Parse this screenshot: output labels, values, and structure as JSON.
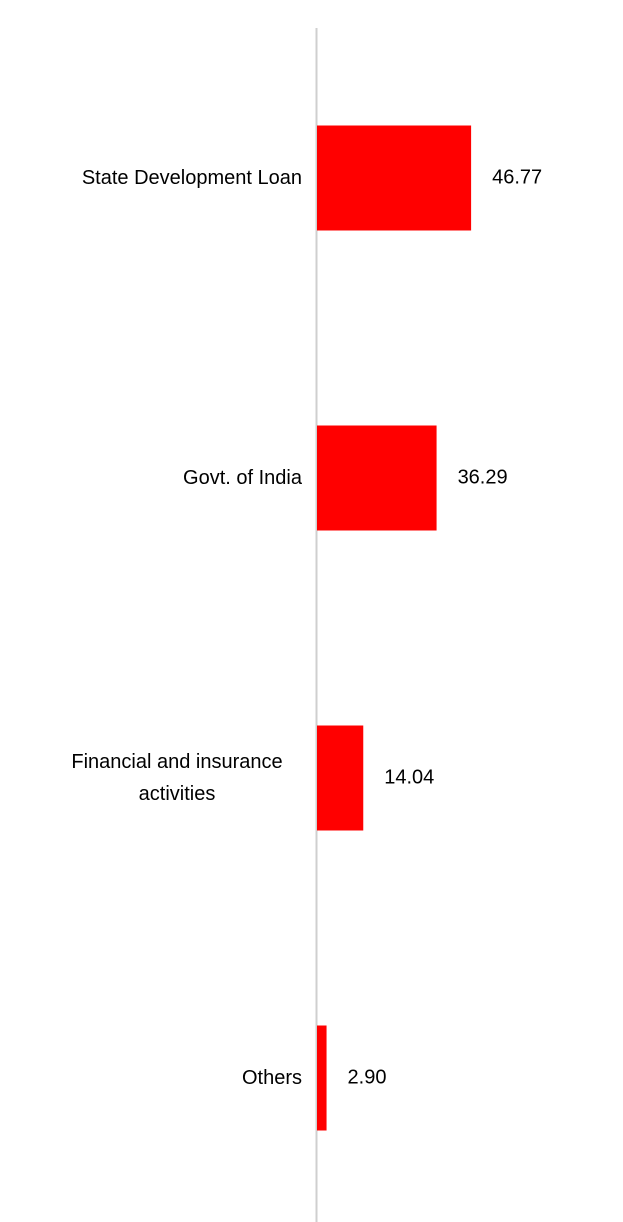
{
  "chart_data": {
    "type": "barh",
    "categories": [
      "State Development Loan",
      "Govt. of India",
      "Financial and insurance activities",
      "Others"
    ],
    "values": [
      46.77,
      36.29,
      14.04,
      2.9
    ],
    "value_labels": [
      "46.77",
      "36.29",
      "14.04",
      "2.90"
    ],
    "color": "#ff0000"
  }
}
